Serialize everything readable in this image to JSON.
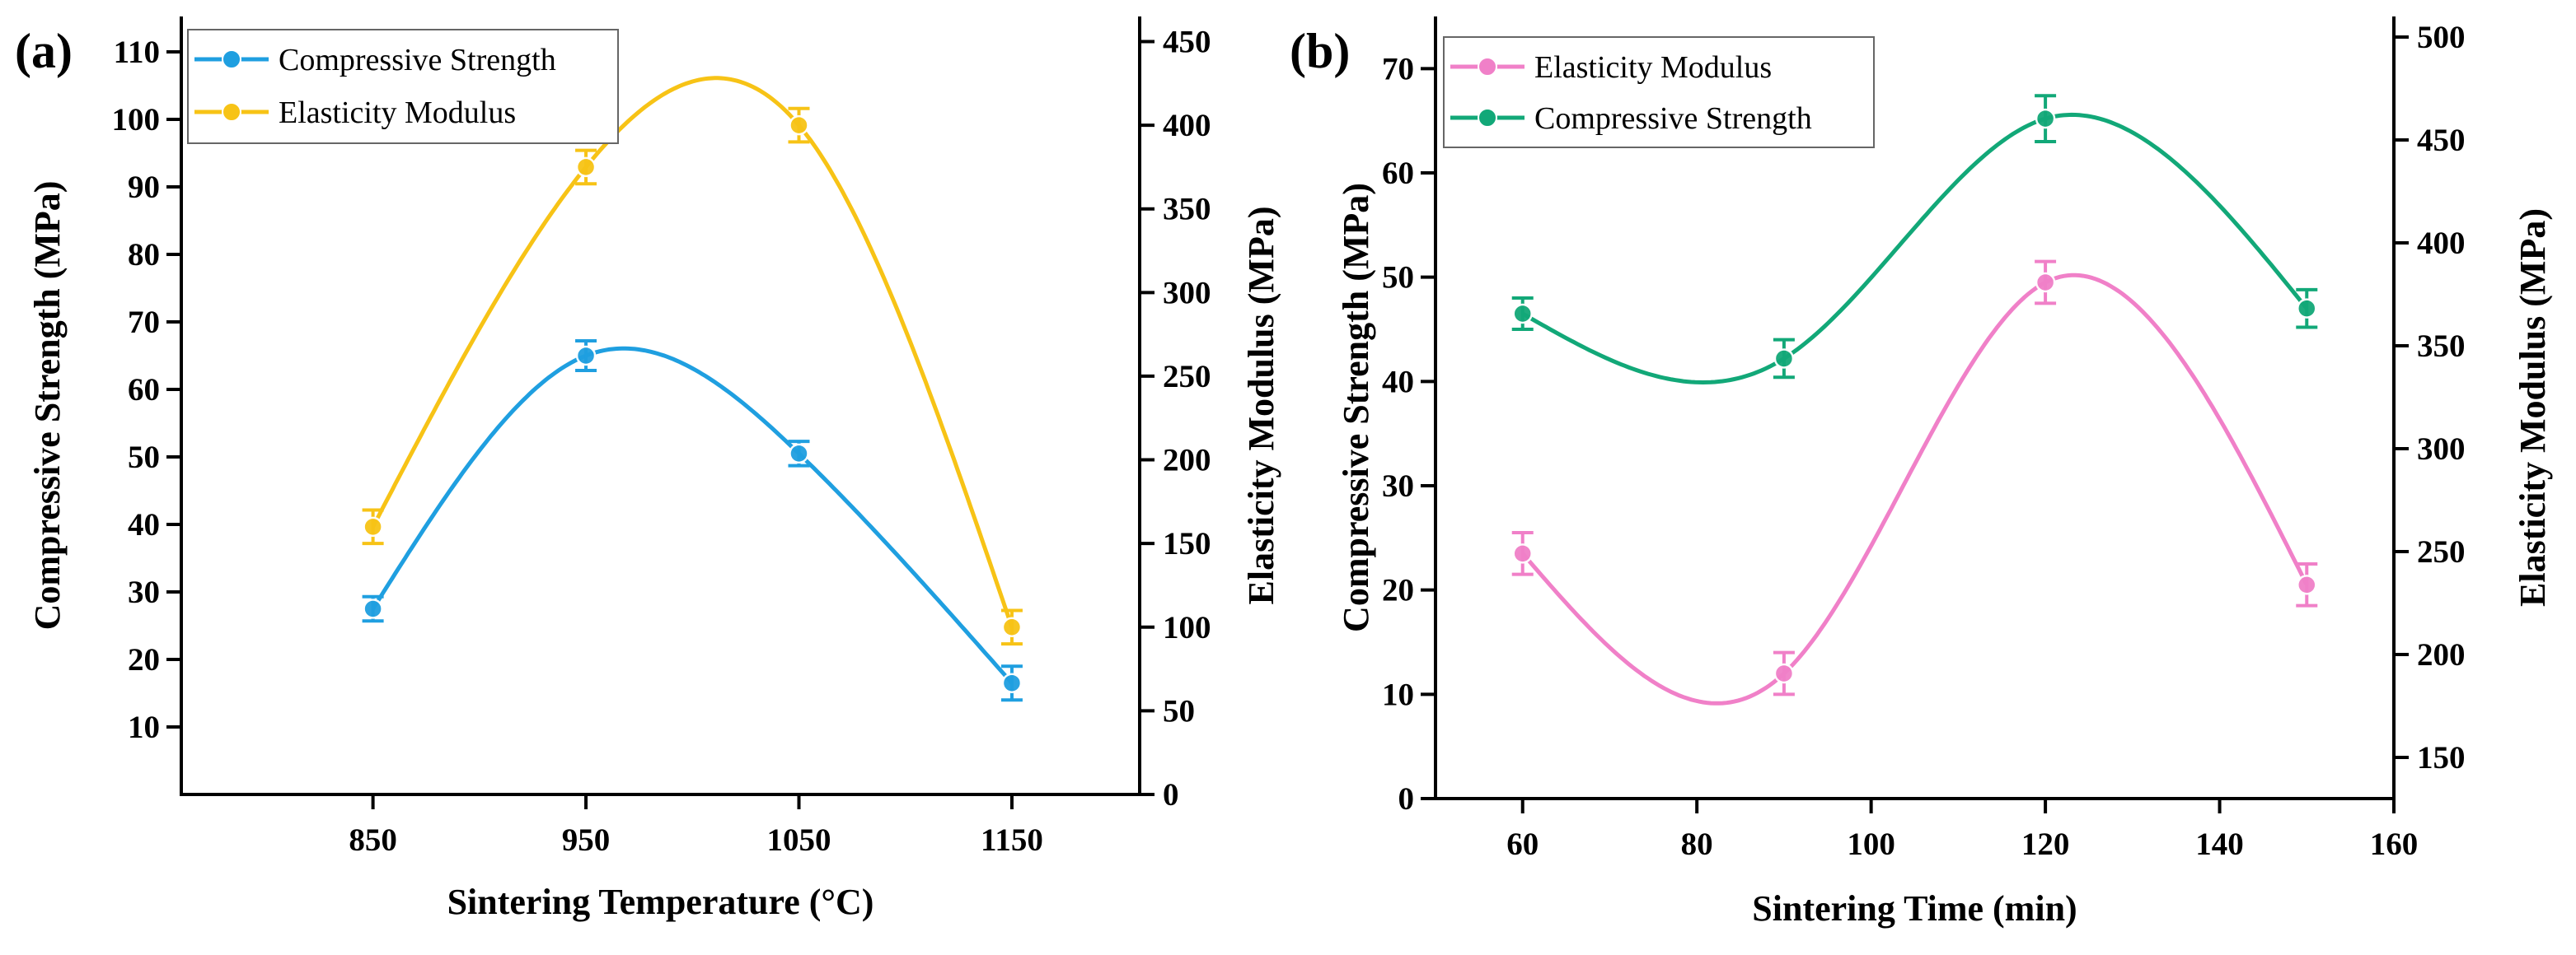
{
  "chart_data": [
    {
      "type": "line",
      "panel_label": "(a)",
      "xlabel": "Sintering Temperature (°C)",
      "ylabel_left": "Compressive Strength (MPa)",
      "ylabel_right": "Elasticity Modulus (MPa)",
      "x": [
        850,
        950,
        1050,
        1150
      ],
      "xlim": [
        760,
        1210
      ],
      "x_ticks": [
        850,
        950,
        1050,
        1150
      ],
      "ylim_left": [
        0,
        115.24
      ],
      "y_ticks_left": [
        10,
        20,
        30,
        40,
        50,
        60,
        70,
        80,
        90,
        100,
        110
      ],
      "ylim_right": [
        0,
        465
      ],
      "y_ticks_right": [
        0,
        50,
        100,
        150,
        200,
        250,
        300,
        350,
        400,
        450
      ],
      "legend": [
        "Compressive Strength",
        "Elasticity Modulus"
      ],
      "legend_position": "top-left",
      "series": [
        {
          "name": "Compressive Strength",
          "axis": "left",
          "color": "#1f9fe0",
          "values": [
            27.5,
            65,
            50.5,
            16.5
          ],
          "errors": [
            1.8,
            2.2,
            1.8,
            2.5
          ]
        },
        {
          "name": "Elasticity Modulus",
          "axis": "right",
          "color": "#f7c316",
          "values": [
            160,
            375,
            400,
            100
          ],
          "errors": [
            10,
            10,
            10,
            10
          ]
        }
      ]
    },
    {
      "type": "line",
      "panel_label": "(b)",
      "xlabel": "Sintering Time (min)",
      "ylabel_left": "Compressive Strength (MPa)",
      "ylabel_right": "Elasticity Modulus (MPa)",
      "x": [
        60,
        90,
        120,
        150
      ],
      "xlim": [
        50,
        160
      ],
      "x_ticks": [
        60,
        80,
        100,
        120,
        140,
        160
      ],
      "ylim_left": [
        0,
        75
      ],
      "y_ticks_left": [
        0,
        10,
        20,
        30,
        40,
        50,
        60,
        70
      ],
      "ylim_right": [
        130,
        510
      ],
      "y_ticks_right": [
        150,
        200,
        250,
        300,
        350,
        400,
        450,
        500
      ],
      "legend": [
        "Elasticity Modulus",
        "Compressive Strength"
      ],
      "legend_position": "top-left",
      "series": [
        {
          "name": "Elasticity Modulus",
          "axis": "left",
          "color": "#f080c8",
          "values": [
            23.5,
            12,
            49.5,
            20.5
          ],
          "errors": [
            2,
            2,
            2,
            2
          ]
        },
        {
          "name": "Compressive Strength",
          "axis": "left",
          "color": "#12a878",
          "values": [
            46.5,
            42.2,
            65.2,
            47
          ],
          "errors": [
            1.5,
            1.8,
            2.2,
            1.8
          ]
        }
      ]
    }
  ]
}
